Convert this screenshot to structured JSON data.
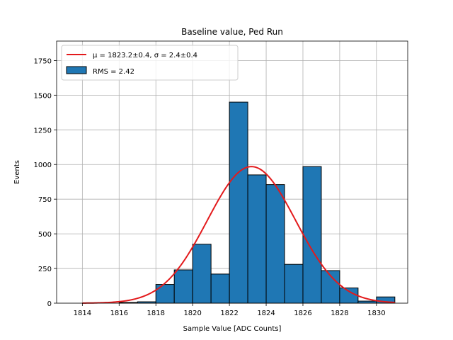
{
  "chart_data": {
    "type": "bar",
    "title": "Baseline value, Ped Run",
    "xlabel": "Sample Value [ADC Counts]",
    "ylabel": "Events",
    "xlim": [
      1812.6,
      1831.7
    ],
    "ylim": [
      0,
      1890
    ],
    "xticks": [
      1814,
      1816,
      1818,
      1820,
      1822,
      1824,
      1826,
      1828,
      1830
    ],
    "yticks": [
      0,
      250,
      500,
      750,
      1000,
      1250,
      1500,
      1750
    ],
    "grid": true,
    "legend_position": "top-left",
    "bin_width": 1.0,
    "bins": [
      {
        "left": 1816,
        "value": 5
      },
      {
        "left": 1817,
        "value": 10
      },
      {
        "left": 1818,
        "value": 135
      },
      {
        "left": 1819,
        "value": 240
      },
      {
        "left": 1820,
        "value": 425
      },
      {
        "left": 1821,
        "value": 210
      },
      {
        "left": 1822,
        "value": 1450
      },
      {
        "left": 1823,
        "value": 925
      },
      {
        "left": 1824,
        "value": 855
      },
      {
        "left": 1825,
        "value": 280
      },
      {
        "left": 1826,
        "value": 985
      },
      {
        "left": 1827,
        "value": 235
      },
      {
        "left": 1828,
        "value": 110
      },
      {
        "left": 1829,
        "value": 15
      },
      {
        "left": 1830,
        "value": 45
      }
    ],
    "fit": {
      "mu": 1823.2,
      "sigma": 2.4,
      "amplitude": 985,
      "x_range": [
        1814,
        1831
      ],
      "color": "#e31a1c"
    },
    "bar_color": "#1f77b4",
    "legend": [
      {
        "kind": "line",
        "label": "μ = 1823.2±0.4, σ = 2.4±0.4",
        "color": "#e31a1c"
      },
      {
        "kind": "patch",
        "label": "RMS = 2.42",
        "color": "#1f77b4"
      }
    ]
  }
}
